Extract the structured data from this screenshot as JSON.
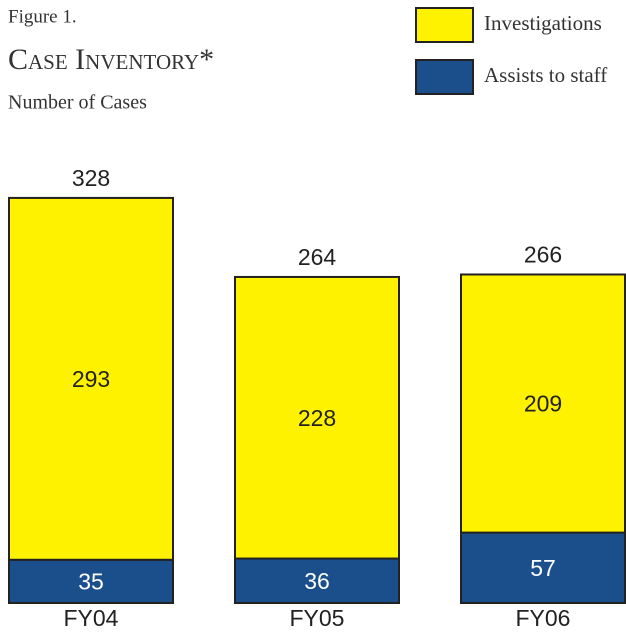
{
  "chart_data": {
    "type": "stacked_bar",
    "figure_label": "Figure 1.",
    "title": "Case Inventory*",
    "subtitle": "Number of Cases",
    "categories": [
      "FY04",
      "FY05",
      "FY06"
    ],
    "series": [
      {
        "name": "Assists to staff",
        "color": "#1b4f8c",
        "values": [
          35,
          36,
          57
        ]
      },
      {
        "name": "Investigations",
        "color": "#fff200",
        "values": [
          293,
          228,
          209
        ]
      }
    ],
    "total_labels": [
      328,
      264,
      266
    ],
    "legend": "top-right"
  }
}
